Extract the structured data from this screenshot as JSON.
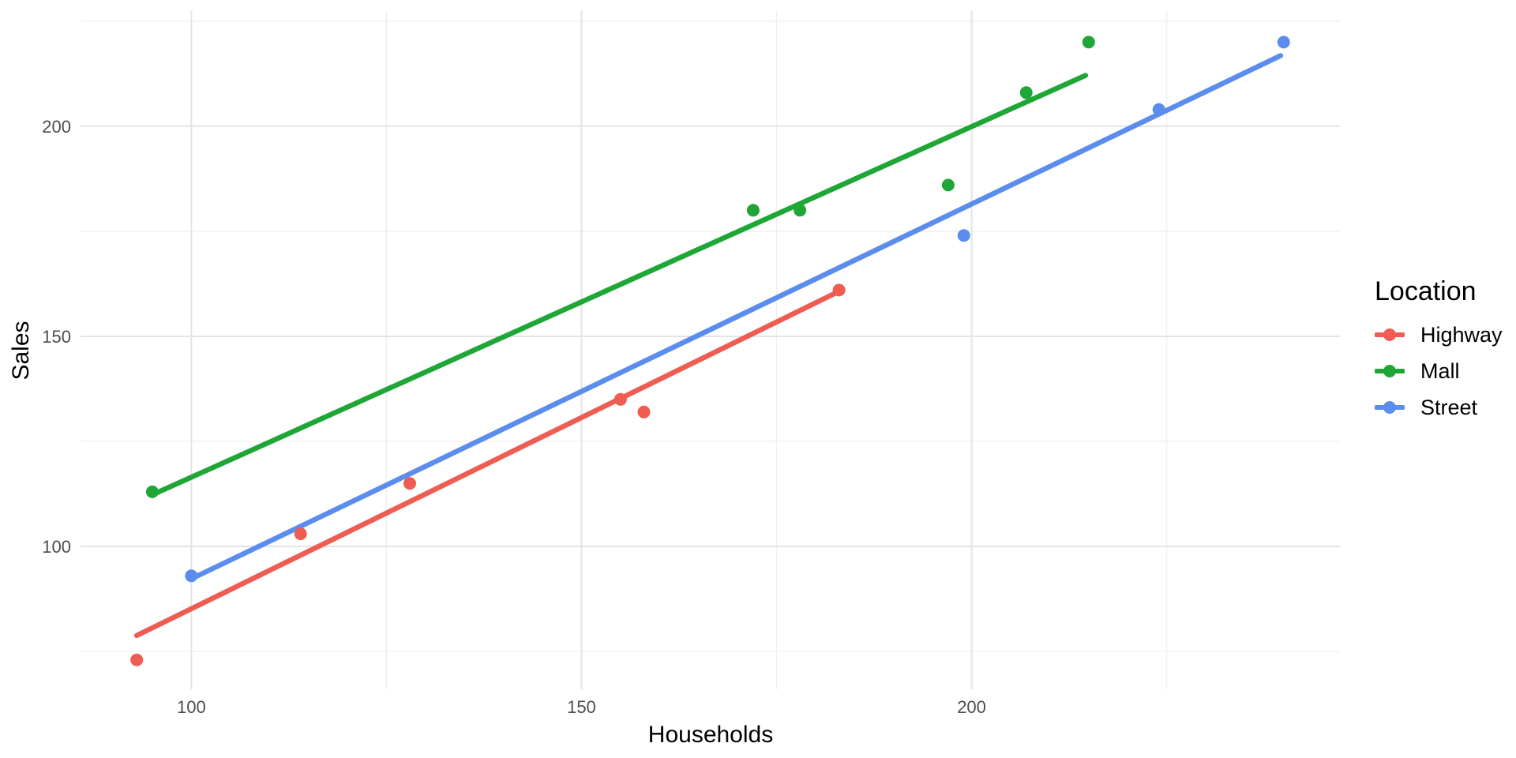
{
  "chart_data": {
    "type": "scatter",
    "title": "",
    "xlabel": "Households",
    "ylabel": "Sales",
    "legend": {
      "title": "Location",
      "position": "right",
      "entries": [
        "Highway",
        "Mall",
        "Street"
      ]
    },
    "axes": {
      "x_ticks": [
        100,
        150,
        200
      ],
      "x_minor_ticks": [
        125,
        175,
        225
      ],
      "x_domain": [
        85.8,
        247.2
      ],
      "y_ticks": [
        100,
        150,
        200
      ],
      "y_minor_ticks": [
        75,
        125,
        175,
        225
      ],
      "y_domain": [
        66.0,
        227.6
      ],
      "grid": true
    },
    "series": [
      {
        "name": "Highway",
        "color": "#EE5C52",
        "points": [
          [
            93,
            73
          ],
          [
            114,
            103
          ],
          [
            128,
            115
          ],
          [
            155,
            135
          ],
          [
            158,
            132
          ],
          [
            183,
            161
          ]
        ],
        "trend_line": {
          "x1": 93,
          "y1": 78.8,
          "x2": 183,
          "y2": 160.7
        }
      },
      {
        "name": "Mall",
        "color": "#1EA737",
        "points": [
          [
            95,
            113
          ],
          [
            172,
            180
          ],
          [
            178,
            180
          ],
          [
            197,
            186
          ],
          [
            207,
            208
          ],
          [
            215,
            220
          ]
        ],
        "trend_line": {
          "x1": 95,
          "y1": 112.3,
          "x2": 214.6,
          "y2": 212.1
        }
      },
      {
        "name": "Street",
        "color": "#5B8DEF",
        "points": [
          [
            100,
            93
          ],
          [
            199,
            174
          ],
          [
            224,
            204
          ],
          [
            240,
            220
          ]
        ],
        "trend_line": {
          "x1": 100,
          "y1": 92.3,
          "x2": 239.6,
          "y2": 216.8
        }
      }
    ]
  }
}
